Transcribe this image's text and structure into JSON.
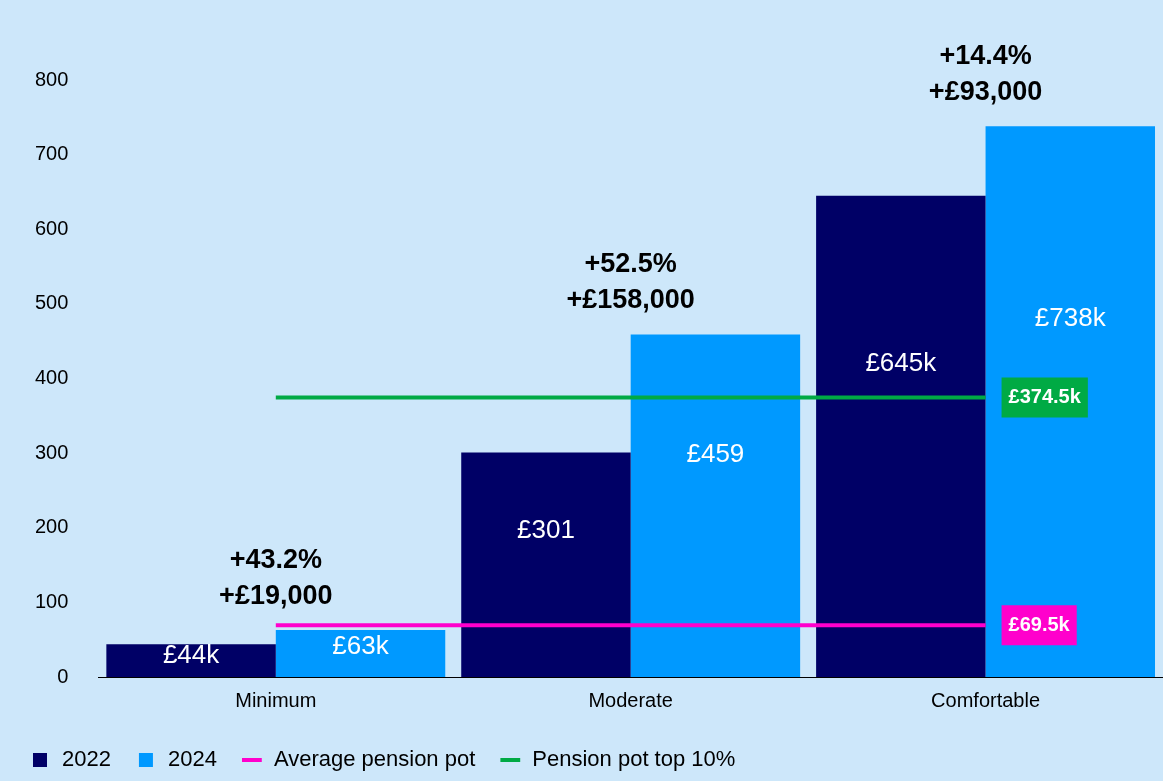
{
  "chart_data": {
    "type": "bar",
    "categories": [
      "Minimum",
      "Moderate",
      "Comfortable"
    ],
    "series": [
      {
        "name": "2022",
        "color": "#000066",
        "values": [
          44,
          301,
          645
        ],
        "value_labels": [
          "£44k",
          "£301",
          "£645k"
        ]
      },
      {
        "name": "2024",
        "color": "#0099ff",
        "values": [
          63,
          459,
          738
        ],
        "value_labels": [
          "£63k",
          "£459",
          "£738k"
        ]
      },
      {
        "name": "Average pension pot",
        "type": "line",
        "color": "#ff00cc",
        "values": [
          69.5,
          69.5,
          69.5
        ],
        "value_labels": [
          null,
          null,
          "£69.5k"
        ]
      },
      {
        "name": "Pension pot top 10%",
        "type": "line",
        "color": "#00aa44",
        "values": [
          374.5,
          374.5,
          374.5
        ],
        "value_labels": [
          null,
          null,
          "£374.5k"
        ]
      }
    ],
    "annotations": [
      {
        "text": "+43.2%\n+£19,000",
        "x": "Minimum",
        "y": 63
      },
      {
        "text": "+52.5%\n+£158,000",
        "x": "Moderate",
        "y": 459
      },
      {
        "text": "+14.4%\n+£93,000",
        "x": "Comfortable",
        "y": 738
      }
    ],
    "ylim": [
      0,
      800
    ],
    "yticks": [
      0,
      100,
      200,
      300,
      400,
      500,
      600,
      700,
      800
    ],
    "grid": false,
    "legend": "bottom",
    "marker": "none"
  }
}
